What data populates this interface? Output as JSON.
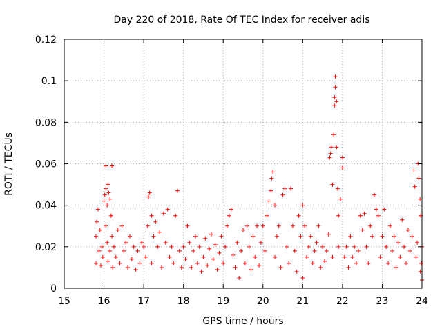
{
  "chart_data": {
    "type": "scatter",
    "title": "Day 220 of 2018, Rate Of TEC Index for receiver adis",
    "xlabel": "GPS time / hours",
    "ylabel": "ROTI / TECUs",
    "xlim": [
      15,
      24
    ],
    "ylim": [
      0,
      0.12
    ],
    "xticks": [
      15,
      16,
      17,
      18,
      19,
      20,
      21,
      22,
      23,
      24
    ],
    "xtick_labels": [
      "15",
      "16",
      "17",
      "18",
      "19",
      "20",
      "21",
      "22",
      "23",
      "24"
    ],
    "yticks": [
      0,
      0.02,
      0.04,
      0.06,
      0.08,
      0.1,
      0.12
    ],
    "ytick_labels": [
      "0",
      "0.02",
      "0.04",
      "0.06",
      "0.08",
      "0.1",
      "0.12"
    ],
    "grid": true,
    "marker": "+",
    "color": "#ff0000",
    "series": [
      {
        "name": "ROTI",
        "points": [
          [
            15.8,
            0.012
          ],
          [
            15.8,
            0.025
          ],
          [
            15.82,
            0.032
          ],
          [
            15.85,
            0.038
          ],
          [
            15.88,
            0.018
          ],
          [
            15.9,
            0.028
          ],
          [
            15.92,
            0.011
          ],
          [
            15.95,
            0.02
          ],
          [
            15.97,
            0.015
          ],
          [
            16.0,
            0.042
          ],
          [
            16.02,
            0.045
          ],
          [
            16.05,
            0.048
          ],
          [
            16.05,
            0.03
          ],
          [
            16.08,
            0.04
          ],
          [
            16.08,
            0.022
          ],
          [
            16.1,
            0.05
          ],
          [
            16.1,
            0.013
          ],
          [
            16.12,
            0.046
          ],
          [
            16.15,
            0.043
          ],
          [
            16.15,
            0.018
          ],
          [
            16.18,
            0.035
          ],
          [
            16.2,
            0.025
          ],
          [
            16.22,
            0.01
          ],
          [
            16.05,
            0.059
          ],
          [
            16.2,
            0.059
          ],
          [
            16.25,
            0.02
          ],
          [
            16.3,
            0.015
          ],
          [
            16.35,
            0.028
          ],
          [
            16.4,
            0.012
          ],
          [
            16.45,
            0.03
          ],
          [
            16.5,
            0.018
          ],
          [
            16.55,
            0.022
          ],
          [
            16.6,
            0.01
          ],
          [
            16.65,
            0.025
          ],
          [
            16.7,
            0.014
          ],
          [
            16.75,
            0.02
          ],
          [
            16.8,
            0.009
          ],
          [
            16.85,
            0.018
          ],
          [
            16.9,
            0.012
          ],
          [
            16.95,
            0.022
          ],
          [
            17.0,
            0.02
          ],
          [
            17.05,
            0.015
          ],
          [
            17.1,
            0.03
          ],
          [
            17.12,
            0.044
          ],
          [
            17.15,
            0.046
          ],
          [
            17.2,
            0.035
          ],
          [
            17.2,
            0.012
          ],
          [
            17.25,
            0.025
          ],
          [
            17.3,
            0.032
          ],
          [
            17.35,
            0.02
          ],
          [
            17.4,
            0.027
          ],
          [
            17.45,
            0.01
          ],
          [
            17.5,
            0.036
          ],
          [
            17.55,
            0.022
          ],
          [
            17.6,
            0.038
          ],
          [
            17.65,
            0.015
          ],
          [
            17.7,
            0.02
          ],
          [
            17.75,
            0.012
          ],
          [
            17.8,
            0.035
          ],
          [
            17.85,
            0.047
          ],
          [
            17.9,
            0.018
          ],
          [
            17.95,
            0.01
          ],
          [
            18.0,
            0.02
          ],
          [
            18.05,
            0.014
          ],
          [
            18.1,
            0.03
          ],
          [
            18.15,
            0.022
          ],
          [
            18.2,
            0.01
          ],
          [
            18.25,
            0.018
          ],
          [
            18.3,
            0.025
          ],
          [
            18.35,
            0.012
          ],
          [
            18.4,
            0.02
          ],
          [
            18.45,
            0.008
          ],
          [
            18.5,
            0.015
          ],
          [
            18.55,
            0.024
          ],
          [
            18.6,
            0.011
          ],
          [
            18.65,
            0.019
          ],
          [
            18.7,
            0.026
          ],
          [
            18.75,
            0.014
          ],
          [
            18.8,
            0.021
          ],
          [
            18.85,
            0.009
          ],
          [
            18.9,
            0.017
          ],
          [
            18.95,
            0.025
          ],
          [
            19.0,
            0.012
          ],
          [
            19.05,
            0.02
          ],
          [
            19.1,
            0.03
          ],
          [
            19.15,
            0.035
          ],
          [
            19.2,
            0.038
          ],
          [
            19.25,
            0.016
          ],
          [
            19.3,
            0.01
          ],
          [
            19.35,
            0.022
          ],
          [
            19.4,
            0.005
          ],
          [
            19.45,
            0.018
          ],
          [
            19.5,
            0.028
          ],
          [
            19.55,
            0.012
          ],
          [
            19.6,
            0.03
          ],
          [
            19.65,
            0.02
          ],
          [
            19.7,
            0.009
          ],
          [
            19.75,
            0.025
          ],
          [
            19.8,
            0.015
          ],
          [
            19.85,
            0.03
          ],
          [
            19.9,
            0.011
          ],
          [
            19.95,
            0.022
          ],
          [
            20.0,
            0.03
          ],
          [
            20.05,
            0.018
          ],
          [
            20.1,
            0.035
          ],
          [
            20.15,
            0.042
          ],
          [
            20.2,
            0.047
          ],
          [
            20.22,
            0.053
          ],
          [
            20.25,
            0.056
          ],
          [
            20.3,
            0.04
          ],
          [
            20.3,
            0.015
          ],
          [
            20.35,
            0.025
          ],
          [
            20.4,
            0.03
          ],
          [
            20.45,
            0.01
          ],
          [
            20.5,
            0.045
          ],
          [
            20.55,
            0.048
          ],
          [
            20.6,
            0.02
          ],
          [
            20.65,
            0.012
          ],
          [
            20.7,
            0.048
          ],
          [
            20.75,
            0.03
          ],
          [
            20.8,
            0.018
          ],
          [
            20.85,
            0.008
          ],
          [
            20.9,
            0.035
          ],
          [
            20.95,
            0.025
          ],
          [
            21.0,
            0.04
          ],
          [
            21.0,
            0.005
          ],
          [
            21.05,
            0.03
          ],
          [
            21.1,
            0.015
          ],
          [
            21.15,
            0.02
          ],
          [
            21.2,
            0.025
          ],
          [
            21.25,
            0.012
          ],
          [
            21.3,
            0.018
          ],
          [
            21.35,
            0.022
          ],
          [
            21.4,
            0.03
          ],
          [
            21.45,
            0.01
          ],
          [
            21.5,
            0.02
          ],
          [
            21.55,
            0.013
          ],
          [
            21.6,
            0.018
          ],
          [
            21.65,
            0.026
          ],
          [
            21.68,
            0.063
          ],
          [
            21.7,
            0.065
          ],
          [
            21.72,
            0.068
          ],
          [
            21.75,
            0.05
          ],
          [
            21.75,
            0.015
          ],
          [
            21.78,
            0.074
          ],
          [
            21.8,
            0.092
          ],
          [
            21.8,
            0.088
          ],
          [
            21.82,
            0.097
          ],
          [
            21.82,
            0.102
          ],
          [
            21.85,
            0.09
          ],
          [
            21.85,
            0.068
          ],
          [
            21.88,
            0.048
          ],
          [
            21.9,
            0.035
          ],
          [
            21.9,
            0.02
          ],
          [
            21.95,
            0.043
          ],
          [
            22.0,
            0.063
          ],
          [
            22.0,
            0.058
          ],
          [
            22.05,
            0.015
          ],
          [
            22.1,
            0.02
          ],
          [
            22.15,
            0.01
          ],
          [
            22.2,
            0.025
          ],
          [
            22.25,
            0.015
          ],
          [
            22.3,
            0.02
          ],
          [
            22.35,
            0.012
          ],
          [
            22.4,
            0.018
          ],
          [
            22.45,
            0.035
          ],
          [
            22.5,
            0.028
          ],
          [
            22.55,
            0.036
          ],
          [
            22.6,
            0.02
          ],
          [
            22.65,
            0.012
          ],
          [
            22.7,
            0.03
          ],
          [
            22.75,
            0.025
          ],
          [
            22.8,
            0.045
          ],
          [
            22.85,
            0.038
          ],
          [
            22.9,
            0.035
          ],
          [
            22.95,
            0.015
          ],
          [
            23.0,
            0.025
          ],
          [
            23.05,
            0.038
          ],
          [
            23.1,
            0.02
          ],
          [
            23.15,
            0.012
          ],
          [
            23.2,
            0.03
          ],
          [
            23.25,
            0.018
          ],
          [
            23.3,
            0.025
          ],
          [
            23.35,
            0.01
          ],
          [
            23.4,
            0.022
          ],
          [
            23.45,
            0.015
          ],
          [
            23.5,
            0.033
          ],
          [
            23.55,
            0.02
          ],
          [
            23.6,
            0.012
          ],
          [
            23.65,
            0.028
          ],
          [
            23.7,
            0.018
          ],
          [
            23.75,
            0.025
          ],
          [
            23.8,
            0.057
          ],
          [
            23.82,
            0.049
          ],
          [
            23.85,
            0.015
          ],
          [
            23.88,
            0.022
          ],
          [
            23.9,
            0.06
          ],
          [
            23.92,
            0.053
          ],
          [
            23.95,
            0.043
          ],
          [
            23.97,
            0.035
          ],
          [
            23.98,
            0.012
          ],
          [
            24.0,
            0.02
          ],
          [
            24.0,
            0.004
          ],
          [
            23.96,
            0.008
          ]
        ]
      }
    ]
  }
}
